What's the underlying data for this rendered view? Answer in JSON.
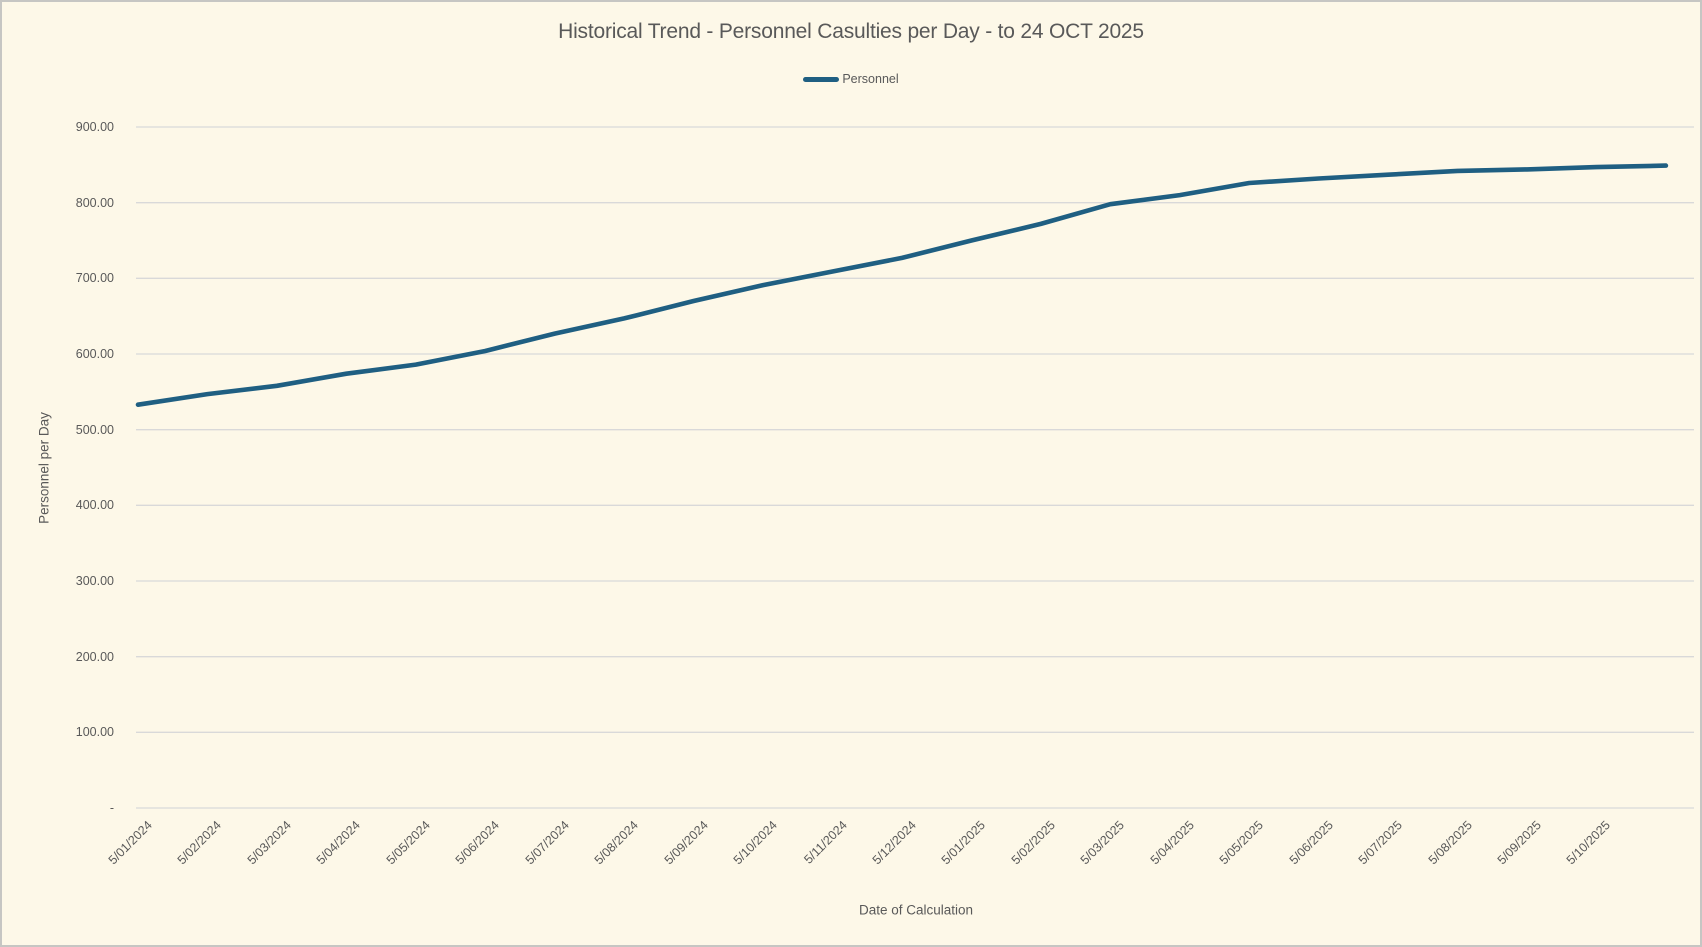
{
  "window": {
    "background_color": "#fdf8e8",
    "border_color": "#c6c6c3",
    "text_color": "#595959",
    "gridline_color": "#d9d9d9"
  },
  "chart_data": {
    "type": "line",
    "title": "Historical Trend - Personnel Casulties per Day - to 24 OCT 2025",
    "xlabel": "Date of Calculation",
    "ylabel": "Personnel per Day",
    "legend_position": "top",
    "grid": "horizontal",
    "ylim": [
      0,
      900
    ],
    "ytick_interval": 100,
    "ytick_labels": [
      "-",
      "100.00",
      "200.00",
      "300.00",
      "400.00",
      "500.00",
      "600.00",
      "700.00",
      "800.00",
      "900.00"
    ],
    "categories": [
      "5/01/2024",
      "5/02/2024",
      "5/03/2024",
      "5/04/2024",
      "5/05/2024",
      "5/06/2024",
      "5/07/2024",
      "5/08/2024",
      "5/09/2024",
      "5/10/2024",
      "5/11/2024",
      "5/12/2024",
      "5/01/2025",
      "5/02/2025",
      "5/03/2025",
      "5/04/2025",
      "5/05/2025",
      "5/06/2025",
      "5/07/2025",
      "5/08/2025",
      "5/09/2025",
      "5/10/2025"
    ],
    "series": [
      {
        "name": "Personnel",
        "color": "#1f5f82",
        "values": [
          533,
          547,
          558,
          574,
          586,
          604,
          627,
          647,
          670,
          691,
          709,
          727,
          750,
          772,
          798,
          810,
          826,
          832,
          837,
          842,
          844,
          847,
          849
        ],
        "note": "23rd point lies one label-interval beyond 5/10/2025; series runs to 24 OCT 2025 per title"
      }
    ]
  }
}
